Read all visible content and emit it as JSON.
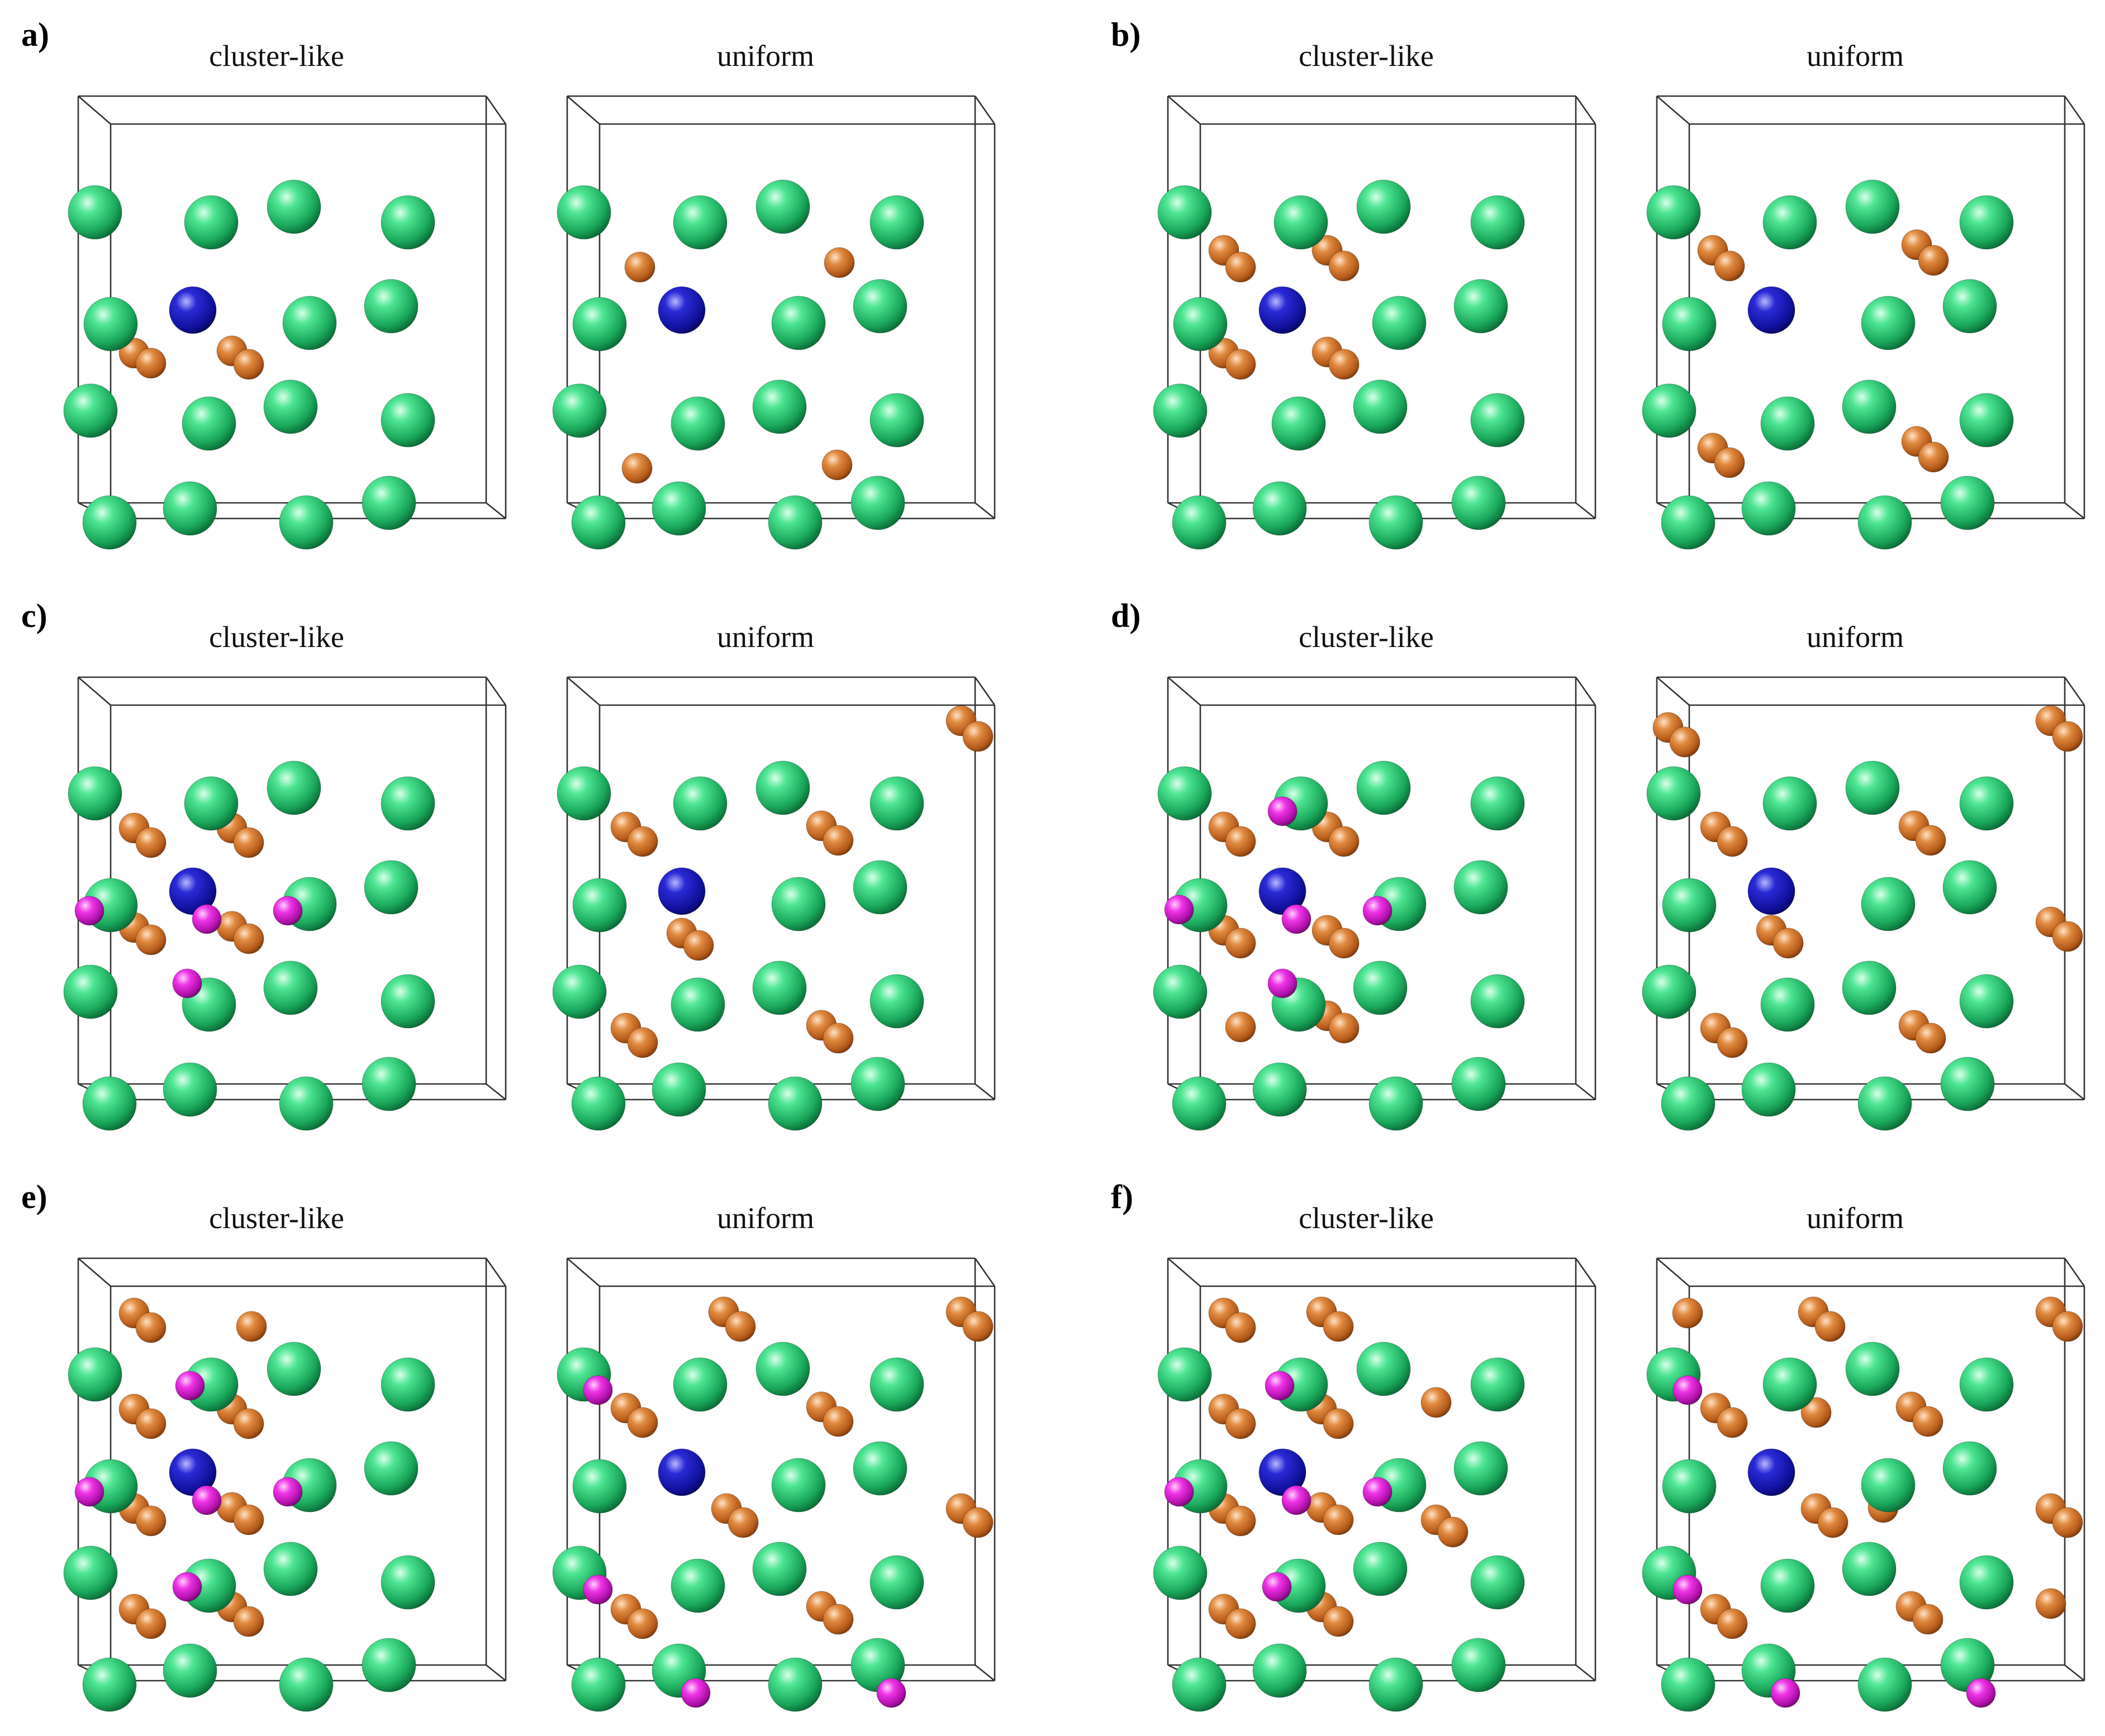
{
  "panels": [
    {
      "label": "a)",
      "left_title": "cluster-like",
      "right_title": "uniform"
    },
    {
      "label": "b)",
      "left_title": "cluster-like",
      "right_title": "uniform"
    },
    {
      "label": "c)",
      "left_title": "cluster-like",
      "right_title": "uniform"
    },
    {
      "label": "d)",
      "left_title": "cluster-like",
      "right_title": "uniform"
    },
    {
      "label": "e)",
      "left_title": "cluster-like",
      "right_title": "uniform"
    },
    {
      "label": "f)",
      "left_title": "cluster-like",
      "right_title": "uniform"
    }
  ],
  "colors": {
    "host_atom": "#2bd27a",
    "center_atom": "#1a1ab8",
    "dopant_atom": "#d77a2e",
    "pink_atom": "#e020d8",
    "cell_edge": "#333333"
  }
}
